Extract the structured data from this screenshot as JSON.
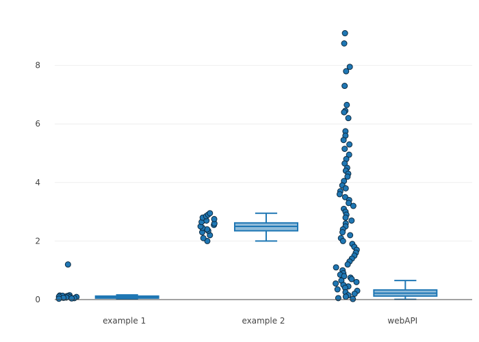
{
  "chart_data": {
    "type": "box",
    "categories": [
      "example 1",
      "example 2",
      "webAPI"
    ],
    "ylim": [
      0,
      9.4
    ],
    "yticks": [
      0,
      2,
      4,
      6,
      8
    ],
    "grid": true,
    "legend": "none",
    "colors": {
      "box": "#1f77b4",
      "box_fill": "rgba(31,119,180,0.5)",
      "point_edge": "#0d2a40"
    },
    "boxes": [
      {
        "category": "example 1",
        "min": 0.02,
        "q1": 0.05,
        "median": 0.09,
        "q3": 0.12,
        "max": 0.16
      },
      {
        "category": "example 2",
        "min": 2.0,
        "q1": 2.35,
        "median": 2.5,
        "q3": 2.62,
        "max": 2.95
      },
      {
        "category": "webAPI",
        "min": 0.01,
        "q1": 0.12,
        "median": 0.22,
        "q3": 0.33,
        "max": 0.65
      }
    ],
    "points": [
      {
        "category": "example 1",
        "values": [
          1.2,
          0.15,
          0.14,
          0.13,
          0.12,
          0.11,
          0.1,
          0.09,
          0.08,
          0.07,
          0.06,
          0.05,
          0.04,
          0.03
        ]
      },
      {
        "category": "example 2",
        "values": [
          2.0,
          2.1,
          2.2,
          2.3,
          2.35,
          2.4,
          2.45,
          2.5,
          2.55,
          2.6,
          2.65,
          2.7,
          2.75,
          2.8,
          2.85,
          2.9,
          2.95
        ]
      },
      {
        "category": "webAPI",
        "values": [
          9.1,
          8.75,
          7.95,
          7.8,
          7.3,
          6.65,
          6.45,
          6.4,
          6.2,
          5.75,
          5.6,
          5.45,
          5.3,
          5.15,
          4.95,
          4.8,
          4.65,
          4.5,
          4.4,
          4.3,
          4.2,
          4.05,
          3.9,
          3.8,
          3.7,
          3.6,
          3.5,
          3.4,
          3.3,
          3.2,
          3.1,
          3.0,
          2.9,
          2.8,
          2.7,
          2.6,
          2.5,
          2.4,
          2.3,
          2.2,
          2.1,
          2.0,
          1.9,
          1.8,
          1.7,
          1.6,
          1.5,
          1.4,
          1.3,
          1.2,
          1.1,
          1.0,
          0.9,
          0.85,
          0.8,
          0.75,
          0.7,
          0.65,
          0.6,
          0.55,
          0.5,
          0.45,
          0.4,
          0.35,
          0.3,
          0.25,
          0.2,
          0.15,
          0.1,
          0.05,
          0.02
        ]
      }
    ]
  }
}
